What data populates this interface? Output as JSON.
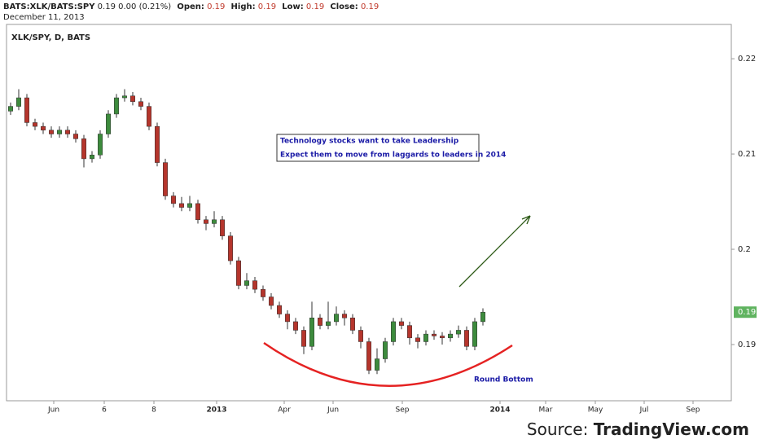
{
  "header": {
    "symbol": "BATS:XLK/BATS:SPY",
    "last": 0.19,
    "change": "0.00 (0.21%)",
    "fields": [
      {
        "label": "Open:",
        "value": 0.19
      },
      {
        "label": "High:",
        "value": 0.19
      },
      {
        "label": "Low:",
        "value": 0.19
      },
      {
        "label": "Close:",
        "value": 0.19
      }
    ],
    "date": "December 11, 2013"
  },
  "chart_data": {
    "type": "candlestick",
    "title": "XLK/SPY, D, BATS",
    "annotations": [
      "Technology stocks want to take Leadership",
      "Expect them to move from laggards to leaders in 2014",
      "Round Bottom"
    ],
    "up_color": "#3d8b3d",
    "down_color": "#b5352c",
    "last_price": 0.19,
    "last_price_color": "#5fb35f",
    "xlim": [
      0,
      89
    ],
    "ylim": [
      0.1841,
      0.2236
    ],
    "xticks": [
      {
        "value": 5.8,
        "label": "Jun"
      },
      {
        "value": 12,
        "label": "6"
      },
      {
        "value": 18.1,
        "label": "8"
      },
      {
        "value": 25.8,
        "label": "2013"
      },
      {
        "value": 34.1,
        "label": "Apr"
      },
      {
        "value": 40.1,
        "label": "Jun"
      },
      {
        "value": 48.6,
        "label": "Sep"
      },
      {
        "value": 60.6,
        "label": "2014"
      },
      {
        "value": 66.2,
        "label": "Mar"
      },
      {
        "value": 72.3,
        "label": "May"
      },
      {
        "value": 78.3,
        "label": "Jul"
      },
      {
        "value": 84.3,
        "label": "Sep"
      }
    ],
    "yticks": [
      0.19,
      0.2,
      0.21,
      0.22
    ],
    "open": [
      0.2145,
      0.215,
      0.2159,
      0.2133,
      0.2129,
      0.2125,
      0.2121,
      0.2125,
      0.2121,
      0.2116,
      0.2095,
      0.2099,
      0.2121,
      0.2142,
      0.2159,
      0.2161,
      0.2155,
      0.215,
      0.2129,
      0.2091,
      0.2056,
      0.2048,
      0.2044,
      0.2048,
      0.2031,
      0.2027,
      0.2031,
      0.2014,
      0.1988,
      0.1962,
      0.1967,
      0.1958,
      0.195,
      0.1941,
      0.1932,
      0.1924,
      0.1915,
      0.1898,
      0.1928,
      0.192,
      0.1924,
      0.1932,
      0.1928,
      0.1915,
      0.1903,
      0.1873,
      0.1885,
      0.1903,
      0.1924,
      0.192,
      0.1907,
      0.1903,
      0.1911,
      0.1909,
      0.1907,
      0.1911,
      0.1915,
      0.1898,
      0.1924
    ],
    "high": [
      0.2154,
      0.2168,
      0.2163,
      0.2137,
      0.2133,
      0.2129,
      0.2129,
      0.2129,
      0.2125,
      0.212,
      0.2103,
      0.2125,
      0.2146,
      0.2163,
      0.2168,
      0.2165,
      0.2159,
      0.2154,
      0.2133,
      0.2095,
      0.206,
      0.2055,
      0.2056,
      0.2052,
      0.2035,
      0.204,
      0.2035,
      0.2018,
      0.1992,
      0.1975,
      0.1971,
      0.1962,
      0.1954,
      0.1945,
      0.1936,
      0.1928,
      0.1919,
      0.1945,
      0.1932,
      0.1945,
      0.194,
      0.1936,
      0.1932,
      0.1919,
      0.1907,
      0.1896,
      0.1907,
      0.1928,
      0.1928,
      0.1924,
      0.1911,
      0.1915,
      0.1915,
      0.1913,
      0.1915,
      0.192,
      0.1919,
      0.1928,
      0.1938
    ],
    "low": [
      0.2141,
      0.2146,
      0.2129,
      0.2125,
      0.2121,
      0.2117,
      0.2117,
      0.2117,
      0.2112,
      0.2086,
      0.2091,
      0.2095,
      0.2117,
      0.2138,
      0.2155,
      0.2151,
      0.2146,
      0.2125,
      0.2087,
      0.2052,
      0.2044,
      0.204,
      0.204,
      0.2027,
      0.202,
      0.2023,
      0.201,
      0.1984,
      0.1958,
      0.1958,
      0.1954,
      0.1946,
      0.1937,
      0.1928,
      0.1916,
      0.1911,
      0.189,
      0.1894,
      0.1916,
      0.1916,
      0.192,
      0.192,
      0.1911,
      0.1896,
      0.1869,
      0.1869,
      0.1881,
      0.1899,
      0.1916,
      0.19,
      0.1896,
      0.1899,
      0.1905,
      0.19,
      0.1903,
      0.1907,
      0.1894,
      0.1894,
      0.192
    ],
    "close": [
      0.215,
      0.2159,
      0.2133,
      0.2129,
      0.2125,
      0.2121,
      0.2125,
      0.2121,
      0.2116,
      0.2095,
      0.2099,
      0.2121,
      0.2142,
      0.2159,
      0.2161,
      0.2155,
      0.215,
      0.2129,
      0.2091,
      0.2056,
      0.2048,
      0.2044,
      0.2048,
      0.2031,
      0.2027,
      0.2031,
      0.2014,
      0.1988,
      0.1962,
      0.1967,
      0.1958,
      0.195,
      0.1941,
      0.1932,
      0.1924,
      0.1915,
      0.1898,
      0.1928,
      0.192,
      0.1924,
      0.1932,
      0.1928,
      0.1915,
      0.1903,
      0.1873,
      0.1885,
      0.1903,
      0.1924,
      0.192,
      0.1907,
      0.1903,
      0.1911,
      0.1909,
      0.1907,
      0.1911,
      0.1915,
      0.1898,
      0.1924,
      0.1934
    ]
  },
  "source": {
    "prefix": "Source:",
    "name": "TradingView.com"
  }
}
